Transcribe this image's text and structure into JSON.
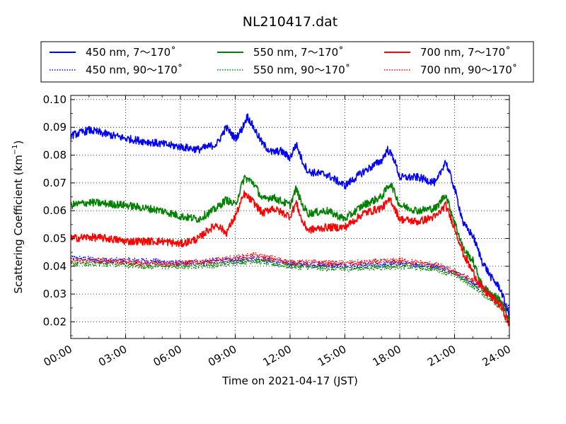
{
  "chart_data": {
    "type": "line",
    "title": "NL210417.dat",
    "xlabel": "Time on 2021-04-17 (JST)",
    "ylabel": "Scattering Coefficient (km",
    "ylabel_sup": "−1",
    "ylabel_close": ")",
    "xlim": [
      "00:00",
      "24:00"
    ],
    "ylim": [
      0.014,
      0.1015
    ],
    "x_ticks": [
      "00:00",
      "03:00",
      "06:00",
      "09:00",
      "12:00",
      "15:00",
      "18:00",
      "21:00",
      "24:00"
    ],
    "y_ticks": [
      "0.02",
      "0.03",
      "0.04",
      "0.05",
      "0.06",
      "0.07",
      "0.08",
      "0.09",
      "0.10"
    ],
    "grid": true,
    "legend_position": "top, above plot, 3 columns",
    "series": [
      {
        "name": "450 nm, 7～170˚",
        "color": "#0000ff",
        "style": "solid",
        "x": [
          "00:00",
          "01:00",
          "02:00",
          "03:00",
          "04:00",
          "05:00",
          "06:00",
          "07:00",
          "07:30",
          "08:00",
          "08:30",
          "09:00",
          "09:20",
          "09:40",
          "10:00",
          "10:30",
          "11:00",
          "11:30",
          "12:00",
          "12:20",
          "12:40",
          "13:00",
          "14:00",
          "15:00",
          "16:00",
          "17:00",
          "17:20",
          "17:40",
          "18:00",
          "19:00",
          "20:00",
          "20:30",
          "21:00",
          "21:30",
          "22:00",
          "22:30",
          "23:00",
          "23:30",
          "24:00"
        ],
        "y": [
          0.087,
          0.089,
          0.0875,
          0.086,
          0.085,
          0.084,
          0.083,
          0.082,
          0.083,
          0.084,
          0.09,
          0.086,
          0.089,
          0.094,
          0.09,
          0.084,
          0.081,
          0.0815,
          0.079,
          0.084,
          0.078,
          0.074,
          0.073,
          0.069,
          0.074,
          0.078,
          0.082,
          0.079,
          0.072,
          0.072,
          0.07,
          0.078,
          0.068,
          0.055,
          0.051,
          0.042,
          0.036,
          0.032,
          0.022
        ]
      },
      {
        "name": "450 nm, 90～170˚",
        "color": "#0000ff",
        "style": "dotted",
        "x": [
          "00:00",
          "02:00",
          "04:00",
          "06:00",
          "08:00",
          "09:00",
          "10:00",
          "12:00",
          "15:00",
          "18:00",
          "20:00",
          "21:00",
          "22:00",
          "23:00",
          "24:00"
        ],
        "y": [
          0.043,
          0.042,
          0.042,
          0.041,
          0.042,
          0.042,
          0.043,
          0.041,
          0.04,
          0.041,
          0.04,
          0.038,
          0.034,
          0.03,
          0.025
        ]
      },
      {
        "name": "550 nm, 7～170˚",
        "color": "#008000",
        "style": "solid",
        "x": [
          "00:00",
          "01:00",
          "02:00",
          "03:00",
          "04:00",
          "05:00",
          "06:00",
          "07:00",
          "08:00",
          "08:30",
          "09:00",
          "09:30",
          "10:00",
          "10:30",
          "11:00",
          "12:00",
          "12:20",
          "12:40",
          "13:00",
          "14:00",
          "15:00",
          "16:00",
          "17:00",
          "17:30",
          "18:00",
          "19:00",
          "20:00",
          "20:30",
          "21:00",
          "21:30",
          "22:00",
          "22:30",
          "23:00",
          "23:30",
          "24:00"
        ],
        "y": [
          0.062,
          0.063,
          0.0625,
          0.062,
          0.061,
          0.06,
          0.058,
          0.057,
          0.061,
          0.064,
          0.062,
          0.072,
          0.07,
          0.064,
          0.065,
          0.062,
          0.068,
          0.062,
          0.059,
          0.06,
          0.057,
          0.062,
          0.065,
          0.07,
          0.062,
          0.06,
          0.061,
          0.066,
          0.056,
          0.046,
          0.042,
          0.033,
          0.03,
          0.028,
          0.02
        ]
      },
      {
        "name": "550 nm, 90～170˚",
        "color": "#008000",
        "style": "dotted",
        "x": [
          "00:00",
          "02:00",
          "04:00",
          "06:00",
          "08:00",
          "09:00",
          "10:00",
          "12:00",
          "15:00",
          "18:00",
          "20:00",
          "21:00",
          "22:00",
          "23:00",
          "24:00"
        ],
        "y": [
          0.041,
          0.041,
          0.04,
          0.04,
          0.0405,
          0.0415,
          0.042,
          0.04,
          0.039,
          0.04,
          0.039,
          0.037,
          0.033,
          0.028,
          0.023
        ]
      },
      {
        "name": "700 nm, 7～170˚",
        "color": "#ff0000",
        "style": "solid",
        "x": [
          "00:00",
          "01:00",
          "02:00",
          "03:00",
          "04:00",
          "05:00",
          "06:00",
          "07:00",
          "07:30",
          "08:00",
          "08:30",
          "09:00",
          "09:30",
          "10:00",
          "10:30",
          "11:00",
          "12:00",
          "12:20",
          "12:40",
          "13:00",
          "14:00",
          "15:00",
          "16:00",
          "17:00",
          "17:30",
          "18:00",
          "19:00",
          "20:00",
          "20:30",
          "21:00",
          "21:30",
          "22:00",
          "22:30",
          "23:00",
          "23:30",
          "24:00"
        ],
        "y": [
          0.05,
          0.0505,
          0.05,
          0.049,
          0.049,
          0.049,
          0.048,
          0.05,
          0.053,
          0.055,
          0.052,
          0.058,
          0.066,
          0.063,
          0.059,
          0.061,
          0.058,
          0.063,
          0.056,
          0.053,
          0.054,
          0.054,
          0.059,
          0.061,
          0.064,
          0.057,
          0.056,
          0.058,
          0.062,
          0.054,
          0.044,
          0.038,
          0.032,
          0.029,
          0.026,
          0.019
        ]
      },
      {
        "name": "700 nm, 90～170˚",
        "color": "#ff0000",
        "style": "dotted",
        "x": [
          "00:00",
          "02:00",
          "04:00",
          "06:00",
          "08:00",
          "09:00",
          "10:00",
          "12:00",
          "15:00",
          "18:00",
          "20:00",
          "21:00",
          "22:00",
          "23:00",
          "24:00"
        ],
        "y": [
          0.042,
          0.042,
          0.041,
          0.041,
          0.042,
          0.043,
          0.044,
          0.0415,
          0.041,
          0.042,
          0.0405,
          0.038,
          0.035,
          0.03,
          0.024
        ]
      }
    ]
  }
}
